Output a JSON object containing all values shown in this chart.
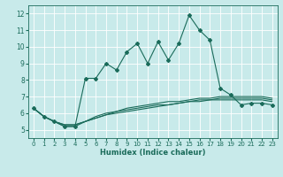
{
  "title": "",
  "xlabel": "Humidex (Indice chaleur)",
  "ylabel": "",
  "background_color": "#c8eaea",
  "grid_color": "#ffffff",
  "line_color": "#1a6b5a",
  "xlim": [
    -0.5,
    23.5
  ],
  "ylim": [
    4.5,
    12.5
  ],
  "xticks": [
    0,
    1,
    2,
    3,
    4,
    5,
    6,
    7,
    8,
    9,
    10,
    11,
    12,
    13,
    14,
    15,
    16,
    17,
    18,
    19,
    20,
    21,
    22,
    23
  ],
  "yticks": [
    5,
    6,
    7,
    8,
    9,
    10,
    11,
    12
  ],
  "main_x": [
    0,
    1,
    2,
    3,
    4,
    5,
    6,
    7,
    8,
    9,
    10,
    11,
    12,
    13,
    14,
    15,
    16,
    17,
    18,
    19,
    20,
    21,
    22,
    23
  ],
  "main_y": [
    6.3,
    5.8,
    5.5,
    5.2,
    5.2,
    8.1,
    8.1,
    9.0,
    8.6,
    9.7,
    10.2,
    9.0,
    10.3,
    9.2,
    10.2,
    11.9,
    11.0,
    10.4,
    7.5,
    7.1,
    6.5,
    6.6,
    6.6,
    6.5
  ],
  "line2_x": [
    0,
    1,
    2,
    3,
    4,
    5,
    6,
    7,
    8,
    9,
    10,
    11,
    12,
    13,
    14,
    15,
    16,
    17,
    18,
    19,
    20,
    21,
    22,
    23
  ],
  "line2_y": [
    6.3,
    5.8,
    5.5,
    5.2,
    5.2,
    5.5,
    5.7,
    5.9,
    6.0,
    6.1,
    6.2,
    6.3,
    6.4,
    6.5,
    6.6,
    6.7,
    6.7,
    6.8,
    6.8,
    6.8,
    6.8,
    6.8,
    6.8,
    6.7
  ],
  "line3_x": [
    0,
    1,
    2,
    3,
    4,
    5,
    6,
    7,
    8,
    9,
    10,
    11,
    12,
    13,
    14,
    15,
    16,
    17,
    18,
    19,
    20,
    21,
    22,
    23
  ],
  "line3_y": [
    6.3,
    5.8,
    5.5,
    5.3,
    5.3,
    5.5,
    5.7,
    5.9,
    6.1,
    6.2,
    6.3,
    6.4,
    6.5,
    6.5,
    6.6,
    6.7,
    6.8,
    6.8,
    6.9,
    6.9,
    6.9,
    6.9,
    6.9,
    6.8
  ],
  "line4_x": [
    0,
    1,
    2,
    3,
    4,
    5,
    6,
    7,
    8,
    9,
    10,
    11,
    12,
    13,
    14,
    15,
    16,
    17,
    18,
    19,
    20,
    21,
    22,
    23
  ],
  "line4_y": [
    6.3,
    5.8,
    5.5,
    5.3,
    5.3,
    5.5,
    5.8,
    6.0,
    6.1,
    6.3,
    6.4,
    6.5,
    6.6,
    6.7,
    6.7,
    6.8,
    6.9,
    6.9,
    7.0,
    7.0,
    7.0,
    7.0,
    7.0,
    6.9
  ],
  "marker": "D",
  "markersize": 2.0,
  "linewidth": 0.8,
  "tick_fontsize": 5.0,
  "xlabel_fontsize": 6.0
}
